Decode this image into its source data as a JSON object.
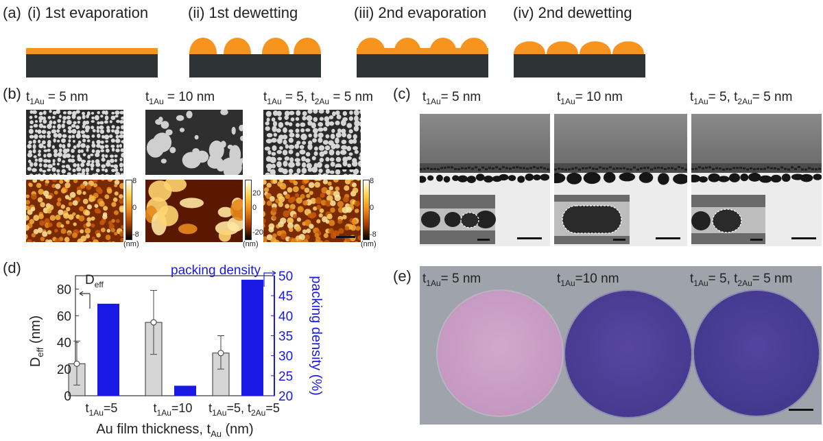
{
  "panel_a": {
    "label": "(a)",
    "steps": [
      "(i) 1st evaporation",
      "(ii) 1st dewetting",
      "(iii) 2nd evaporation",
      "(iv) 2nd dewetting"
    ]
  },
  "panel_b": {
    "label": "(b)",
    "headers": [
      {
        "t1_sym": "t",
        "t1_sub": "1Au",
        "t1_rest": " = 5 nm",
        "t2_sub": "",
        "t2_rest": ""
      },
      {
        "t1_sym": "t",
        "t1_sub": "1Au",
        "t1_rest": " = 10 nm",
        "t2_sub": "",
        "t2_rest": ""
      },
      {
        "t1_sym": "t",
        "t1_sub": "1Au",
        "t1_rest": " = 5, ",
        "t2_sub": "2Au",
        "t2_rest": " = 5 nm"
      }
    ],
    "colorbars": [
      {
        "max": "8",
        "mid": "0",
        "min": "-8",
        "unit": "(nm)"
      },
      {
        "max": "20",
        "mid": "0",
        "min": "-20",
        "unit": "(nm)"
      },
      {
        "max": "8",
        "mid": "0",
        "min": "-8",
        "unit": "(nm)"
      }
    ]
  },
  "panel_c": {
    "label": "(c)",
    "headers": [
      {
        "t1_sym": "t",
        "t1_sub": "1Au",
        "t1_rest": "= 5 nm",
        "t2_sub": "",
        "t2_rest": ""
      },
      {
        "t1_sym": "t",
        "t1_sub": "1Au",
        "t1_rest": "= 10 nm",
        "t2_sub": "",
        "t2_rest": ""
      },
      {
        "t1_sym": "t",
        "t1_sub": "1Au",
        "t1_rest": "= 5, t",
        "t2_sub": "2Au",
        "t2_rest": "= 5 nm"
      }
    ]
  },
  "panel_d": {
    "label": "(d)",
    "colors": {
      "deff_bar": "#d6d6d6",
      "packing_bar": "#1919e6",
      "right_axis": "#1919e6"
    }
  },
  "panel_e": {
    "label": "(e)",
    "headers": [
      {
        "t1_sym": "t",
        "t1_sub": "1Au",
        "t1_rest": "= 5 nm",
        "t2_sub": "",
        "t2_rest": ""
      },
      {
        "t1_sym": "t",
        "t1_sub": "1Au",
        "t1_rest": "=10 nm",
        "t2_sub": "",
        "t2_rest": ""
      },
      {
        "t1_sym": "t",
        "t1_sub": "1Au",
        "t1_rest": "= 5, t",
        "t2_sub": "2Au",
        "t2_rest": "= 5 nm"
      }
    ],
    "colors": {
      "background": "#9fa3ab",
      "wafer_1": "#c99bc4",
      "wafer_2": "#4c3f97",
      "wafer_3": "#4a3d93"
    }
  },
  "chart_data": {
    "type": "bar",
    "categories": [
      "t1Au=5",
      "t1Au=10",
      "t1Au=5, t2Au=5"
    ],
    "category_labels": [
      {
        "p1": "t",
        "s1": "1Au",
        "r1": "=5",
        "s2": "",
        "r2": ""
      },
      {
        "p1": "t",
        "s1": "1Au",
        "r1": "=10",
        "s2": "",
        "r2": ""
      },
      {
        "p1": "t",
        "s1": "1Au",
        "r1": "=5, t",
        "s2": "2Au",
        "r2": "=5"
      }
    ],
    "xlabel": {
      "main": "Au film thickness, t",
      "sub": "Au",
      "tail": " (nm)"
    },
    "ylabel_left": {
      "main": "D",
      "sub": "eff",
      "tail": " (nm)"
    },
    "ylabel_right": "packing density (%)",
    "annotation_left": {
      "main": "D",
      "sub": "eff"
    },
    "annotation_right": "packing density",
    "ylim_left": [
      0,
      90
    ],
    "yticks_left": [
      0,
      20,
      40,
      60,
      80
    ],
    "ylim_right": [
      20,
      50
    ],
    "yticks_right": [
      20,
      25,
      30,
      35,
      40,
      45,
      50
    ],
    "series": [
      {
        "name": "Deff",
        "axis": "left",
        "values": [
          24,
          55,
          32
        ],
        "err_low": [
          8,
          31,
          20
        ],
        "err_high": [
          41,
          79,
          45
        ],
        "color": "#d6d6d6"
      },
      {
        "name": "packing density",
        "axis": "right",
        "values": [
          43,
          22.5,
          49
        ],
        "color": "#1919e6"
      }
    ]
  }
}
